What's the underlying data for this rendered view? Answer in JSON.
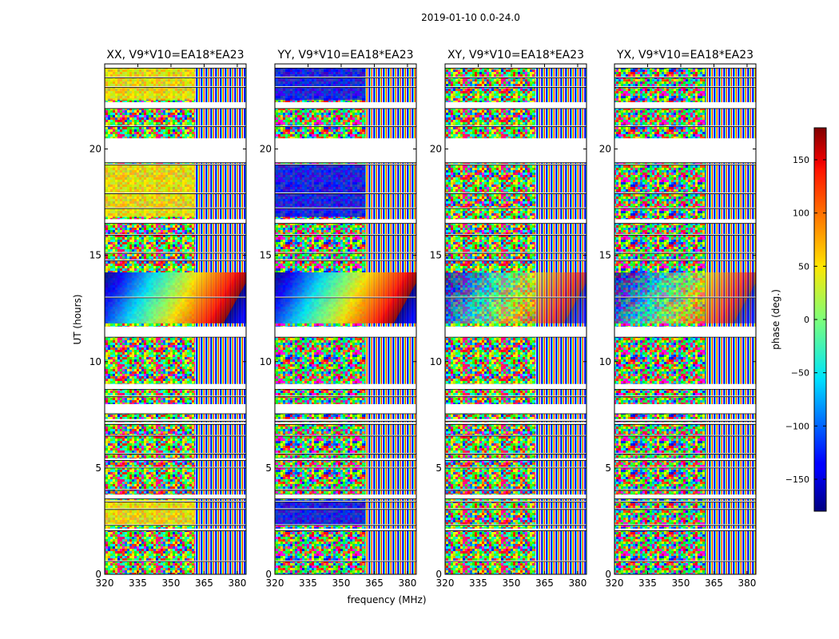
{
  "figure": {
    "suptitle": "2019-01-10 0.0-24.0",
    "xlabel": "frequency (MHz)",
    "ylabel": "UT (hours)"
  },
  "chart_data": {
    "type": "heatmap",
    "colormap": "jet",
    "xlim": [
      320,
      384
    ],
    "ylim": [
      0,
      24
    ],
    "xticks": [
      320,
      335,
      350,
      365,
      380
    ],
    "yticks": [
      0,
      5,
      10,
      15,
      20
    ],
    "colorbar": {
      "label": "phase (deg.)",
      "range": [
        -180,
        180
      ],
      "ticks": [
        -150,
        -100,
        -50,
        0,
        50,
        100,
        150
      ]
    },
    "panels": [
      {
        "title": "XX, V9*V10=EA18*EA23",
        "pol": "XX",
        "coherent_phase_deg": 40
      },
      {
        "title": "YY, V9*V10=EA18*EA23",
        "pol": "YY",
        "coherent_phase_deg": -150
      },
      {
        "title": "XY, V9*V10=EA18*EA23",
        "pol": "XY",
        "coherent_phase_deg": null
      },
      {
        "title": "YX, V9*V10=EA18*EA23",
        "pol": "YX",
        "coherent_phase_deg": null
      }
    ],
    "flagged_time_ranges_hours": [
      [
        0.6,
        0.65
      ],
      [
        2.05,
        2.15
      ],
      [
        2.3,
        2.35
      ],
      [
        3.05,
        3.1
      ],
      [
        3.4,
        3.45
      ],
      [
        3.55,
        3.75
      ],
      [
        3.95,
        4.0
      ],
      [
        5.0,
        5.05
      ],
      [
        5.35,
        5.45
      ],
      [
        5.65,
        5.7
      ],
      [
        6.5,
        6.55
      ],
      [
        7.05,
        7.15
      ],
      [
        7.2,
        7.3
      ],
      [
        7.55,
        8.0
      ],
      [
        8.35,
        8.4
      ],
      [
        8.7,
        8.95
      ],
      [
        11.15,
        11.65
      ],
      [
        13.0,
        13.05
      ],
      [
        14.75,
        14.8
      ],
      [
        15.1,
        15.15
      ],
      [
        15.95,
        16.0
      ],
      [
        16.5,
        16.7
      ],
      [
        17.2,
        17.25
      ],
      [
        17.9,
        17.95
      ],
      [
        19.25,
        19.3
      ],
      [
        19.35,
        20.5
      ],
      [
        21.05,
        21.1
      ],
      [
        21.9,
        22.2
      ],
      [
        22.9,
        22.95
      ],
      [
        23.35,
        23.4
      ],
      [
        23.8,
        24.0
      ]
    ],
    "coherent_time_ranges_hours": [
      [
        2.3,
        3.5
      ],
      [
        11.8,
        14.2
      ],
      [
        16.8,
        19.3
      ],
      [
        22.3,
        23.8
      ]
    ]
  }
}
